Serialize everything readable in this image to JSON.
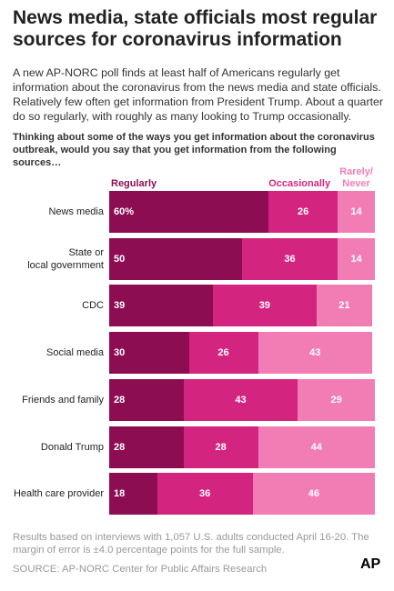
{
  "chart_data": {
    "type": "stacked-bar-horizontal",
    "title": "News media, state officials most regular sources for coronavirus information",
    "subtitle": "A new AP-NORC poll finds at least half of Americans regularly get information about the coronavirus from the news media and state officials. Relatively few often get information from President Trump. About a quarter do so regularly, with roughly as many looking to Trump occasionally.",
    "question": "Thinking about some of the ways you get information about the coronavirus outbreak, would you say that you get information from the following sources…",
    "categories": [
      "News media",
      "State or\nlocal government",
      "CDC",
      "Social media",
      "Friends and family",
      "Donald Trump",
      "Health care provider"
    ],
    "series": [
      {
        "name": "Regularly",
        "color": "#8c0d52",
        "values": [
          60,
          50,
          39,
          30,
          28,
          28,
          18
        ],
        "value_labels": [
          "60%",
          "50",
          "39",
          "30",
          "28",
          "28",
          "18"
        ]
      },
      {
        "name": "Occasionally",
        "color": "#d3257f",
        "values": [
          26,
          36,
          39,
          26,
          43,
          28,
          36
        ]
      },
      {
        "name": "Rarely/ Never",
        "color": "#f27db5",
        "values": [
          14,
          14,
          21,
          43,
          29,
          44,
          46
        ]
      }
    ],
    "xlim": [
      0,
      100
    ],
    "note": "Results based on interviews with 1,057 U.S. adults conducted April 16-20. The margin of error is ±4.0 percentage points for the full sample.",
    "source": "SOURCE: AP-NORC Center for Public Affairs Research",
    "logo": "AP"
  }
}
